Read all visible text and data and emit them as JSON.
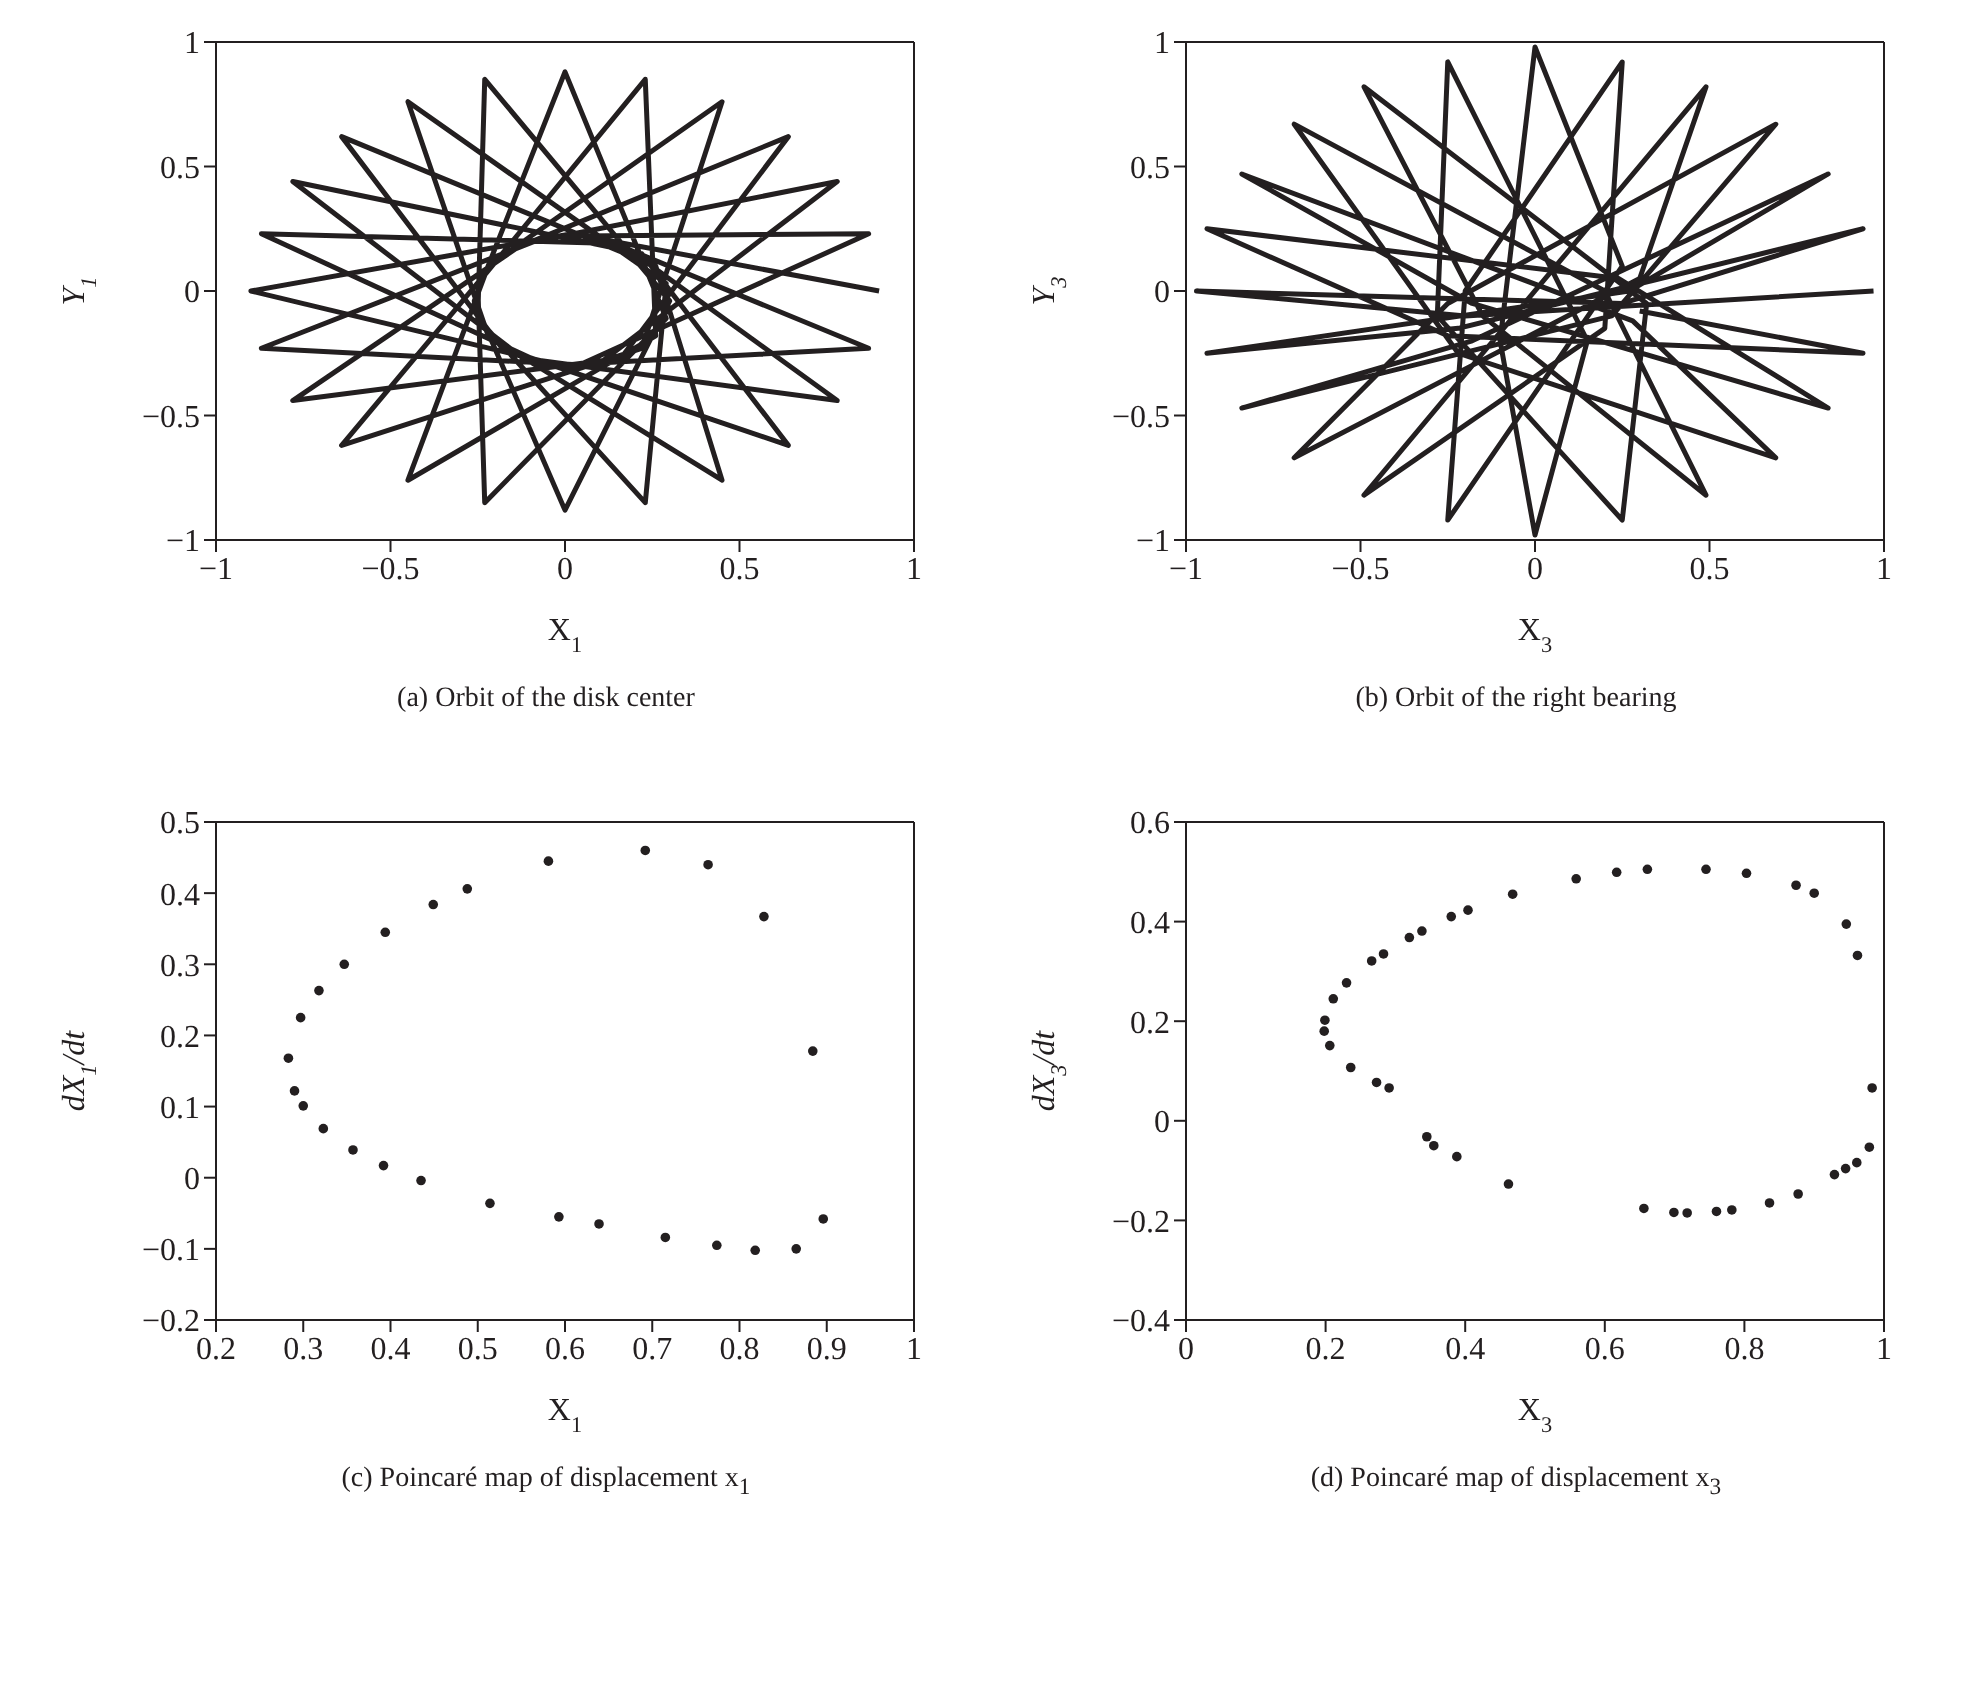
{
  "chart_data": [
    {
      "type": "line",
      "title": "(a)  Orbit of the disk center",
      "xlabel": "X$_{1}$",
      "ylabel": "Y$_{1}$",
      "xlim": [
        -1,
        1
      ],
      "ylim": [
        -1,
        1
      ],
      "xticks": [
        -1,
        -0.5,
        0,
        0.5,
        1
      ],
      "yticks": [
        -1,
        -0.5,
        0,
        0.5,
        1
      ],
      "grid": false,
      "marker": "none",
      "line_style": "solid",
      "series": [
        {
          "color": "#231f20",
          "x": [
            0.9,
            0.02,
            -0.9,
            0.02,
            0.87,
            -0.05,
            -0.87,
            0.09,
            0.78,
            -0.12,
            -0.78,
            0.16,
            0.64,
            -0.18,
            -0.64,
            0.22,
            0.45,
            -0.22,
            -0.45,
            0.26,
            0.23,
            -0.25,
            -0.23,
            0.29,
            0,
            -0.26,
            0,
            0.3,
            -0.23,
            -0.25,
            0.23,
            0.29,
            -0.45,
            -0.22,
            0.45,
            0.26,
            -0.64,
            -0.18,
            0.64,
            0.22,
            -0.78,
            -0.12,
            0.78,
            0.16,
            -0.87,
            -0.05,
            0.87,
            0.09
          ],
          "values": [
            0,
            0.23,
            0,
            -0.31,
            0.23,
            0.22,
            -0.23,
            -0.3,
            0.44,
            0.19,
            -0.44,
            -0.27,
            0.62,
            0.15,
            -0.62,
            -0.23,
            0.76,
            0.1,
            -0.76,
            -0.18,
            0.85,
            0.03,
            -0.85,
            -0.11,
            0.88,
            -0.04,
            -0.88,
            -0.04,
            0.85,
            -0.11,
            -0.85,
            0.03,
            0.76,
            -0.18,
            -0.76,
            0.1,
            0.62,
            -0.23,
            -0.62,
            0.15,
            0.44,
            -0.27,
            -0.44,
            0.19,
            0.23,
            -0.3,
            -0.23,
            0.22
          ]
        }
      ]
    },
    {
      "type": "line",
      "title": "(b)  Orbit of the right bearing",
      "xlabel": "X$_{3}$",
      "ylabel": "Y$_{3}$",
      "xlim": [
        -1,
        1
      ],
      "ylim": [
        -1,
        1
      ],
      "xticks": [
        -1,
        -0.5,
        0,
        0.5,
        1
      ],
      "yticks": [
        -1,
        -0.5,
        0,
        0.5,
        1
      ],
      "grid": false,
      "marker": "none",
      "line_style": "solid",
      "series": [
        {
          "color": "#231f20",
          "x": [
            0.97,
            -0.2,
            -0.97,
            0.25,
            0.94,
            -0.22,
            -0.94,
            0.27,
            0.84,
            -0.18,
            -0.84,
            0.22,
            0.69,
            -0.25,
            -0.69,
            0.3,
            0.49,
            -0.15,
            -0.49,
            0.2,
            0.25,
            -0.2,
            -0.25,
            0.25,
            0,
            -0.1,
            0,
            0.15,
            -0.25,
            -0.28,
            0.25,
            0.32,
            -0.49,
            -0.15,
            0.49,
            0.2,
            -0.69,
            -0.22,
            0.69,
            0.28,
            -0.84,
            -0.18,
            0.84,
            0.24,
            -0.94,
            -0.25,
            0.94,
            0.3
          ],
          "values": [
            0,
            -0.1,
            0,
            -0.05,
            0.25,
            -0.15,
            -0.25,
            0,
            0.47,
            -0.2,
            -0.47,
            -0.1,
            0.67,
            -0.05,
            -0.67,
            0.05,
            0.82,
            -0.25,
            -0.82,
            -0.15,
            0.92,
            0,
            -0.92,
            0.1,
            0.98,
            -0.2,
            -0.98,
            -0.2,
            0.92,
            -0.1,
            -0.92,
            -0.05,
            0.82,
            -0.1,
            -0.82,
            0,
            0.67,
            -0.25,
            -0.67,
            -0.12,
            0.47,
            -0.05,
            -0.47,
            0.05,
            0.25,
            -0.18,
            -0.25,
            -0.08
          ]
        }
      ]
    },
    {
      "type": "scatter",
      "title": "(c)  Poincaré map of displacement x$_{1}$",
      "xlabel": "X$_{1}$",
      "ylabel": "dX$_{1}$/dt",
      "xlim": [
        0.2,
        1
      ],
      "ylim": [
        -0.2,
        0.5
      ],
      "xticks": [
        0.2,
        0.3,
        0.4,
        0.5,
        0.6,
        0.7,
        0.8,
        0.9,
        1
      ],
      "yticks": [
        -0.2,
        -0.1,
        0,
        0.1,
        0.2,
        0.3,
        0.4,
        0.5
      ],
      "grid": false,
      "marker": "circle",
      "series": [
        {
          "color": "#231f20",
          "x": [
            0.581,
            0.692,
            0.764,
            0.828,
            0.884,
            0.896,
            0.865,
            0.818,
            0.774,
            0.715,
            0.639,
            0.593,
            0.514,
            0.435,
            0.392,
            0.357,
            0.323,
            0.3,
            0.29,
            0.283,
            0.297,
            0.318,
            0.347,
            0.394,
            0.449,
            0.488
          ],
          "values": [
            0.445,
            0.46,
            0.44,
            0.367,
            0.178,
            -0.058,
            -0.1,
            -0.102,
            -0.095,
            -0.084,
            -0.065,
            -0.055,
            -0.036,
            -0.004,
            0.017,
            0.039,
            0.069,
            0.101,
            0.122,
            0.168,
            0.225,
            0.263,
            0.3,
            0.345,
            0.384,
            0.406
          ]
        }
      ]
    },
    {
      "type": "scatter",
      "title": "(d)  Poincaré map of displacement x$_{3}$",
      "xlabel": "X$_{3}$",
      "ylabel": "dX$_{3}$/dt",
      "xlim": [
        0,
        1
      ],
      "ylim": [
        -0.4,
        0.6
      ],
      "xticks": [
        0,
        0.2,
        0.4,
        0.6,
        0.8,
        1
      ],
      "yticks": [
        -0.4,
        -0.2,
        0,
        0.2,
        0.4,
        0.6
      ],
      "grid": false,
      "marker": "circle",
      "series": [
        {
          "color": "#231f20",
          "x": [
            0.199,
            0.198,
            0.206,
            0.211,
            0.23,
            0.236,
            0.266,
            0.273,
            0.283,
            0.291,
            0.32,
            0.338,
            0.345,
            0.355,
            0.38,
            0.388,
            0.404,
            0.462,
            0.468,
            0.559,
            0.617,
            0.661,
            0.656,
            0.699,
            0.718,
            0.745,
            0.76,
            0.782,
            0.803,
            0.836,
            0.874,
            0.877,
            0.9,
            0.929,
            0.945,
            0.946,
            0.961,
            0.962,
            0.979,
            0.983
          ],
          "values": [
            0.202,
            0.18,
            0.151,
            0.245,
            0.277,
            0.107,
            0.321,
            0.077,
            0.335,
            0.066,
            0.368,
            0.381,
            -0.032,
            -0.05,
            0.41,
            -0.072,
            0.423,
            -0.127,
            0.455,
            0.486,
            0.499,
            0.505,
            -0.176,
            -0.184,
            -0.185,
            0.505,
            -0.182,
            -0.179,
            0.497,
            -0.165,
            0.473,
            -0.147,
            0.457,
            -0.108,
            -0.096,
            0.395,
            -0.084,
            0.332,
            -0.053,
            0.066
          ]
        }
      ]
    }
  ]
}
